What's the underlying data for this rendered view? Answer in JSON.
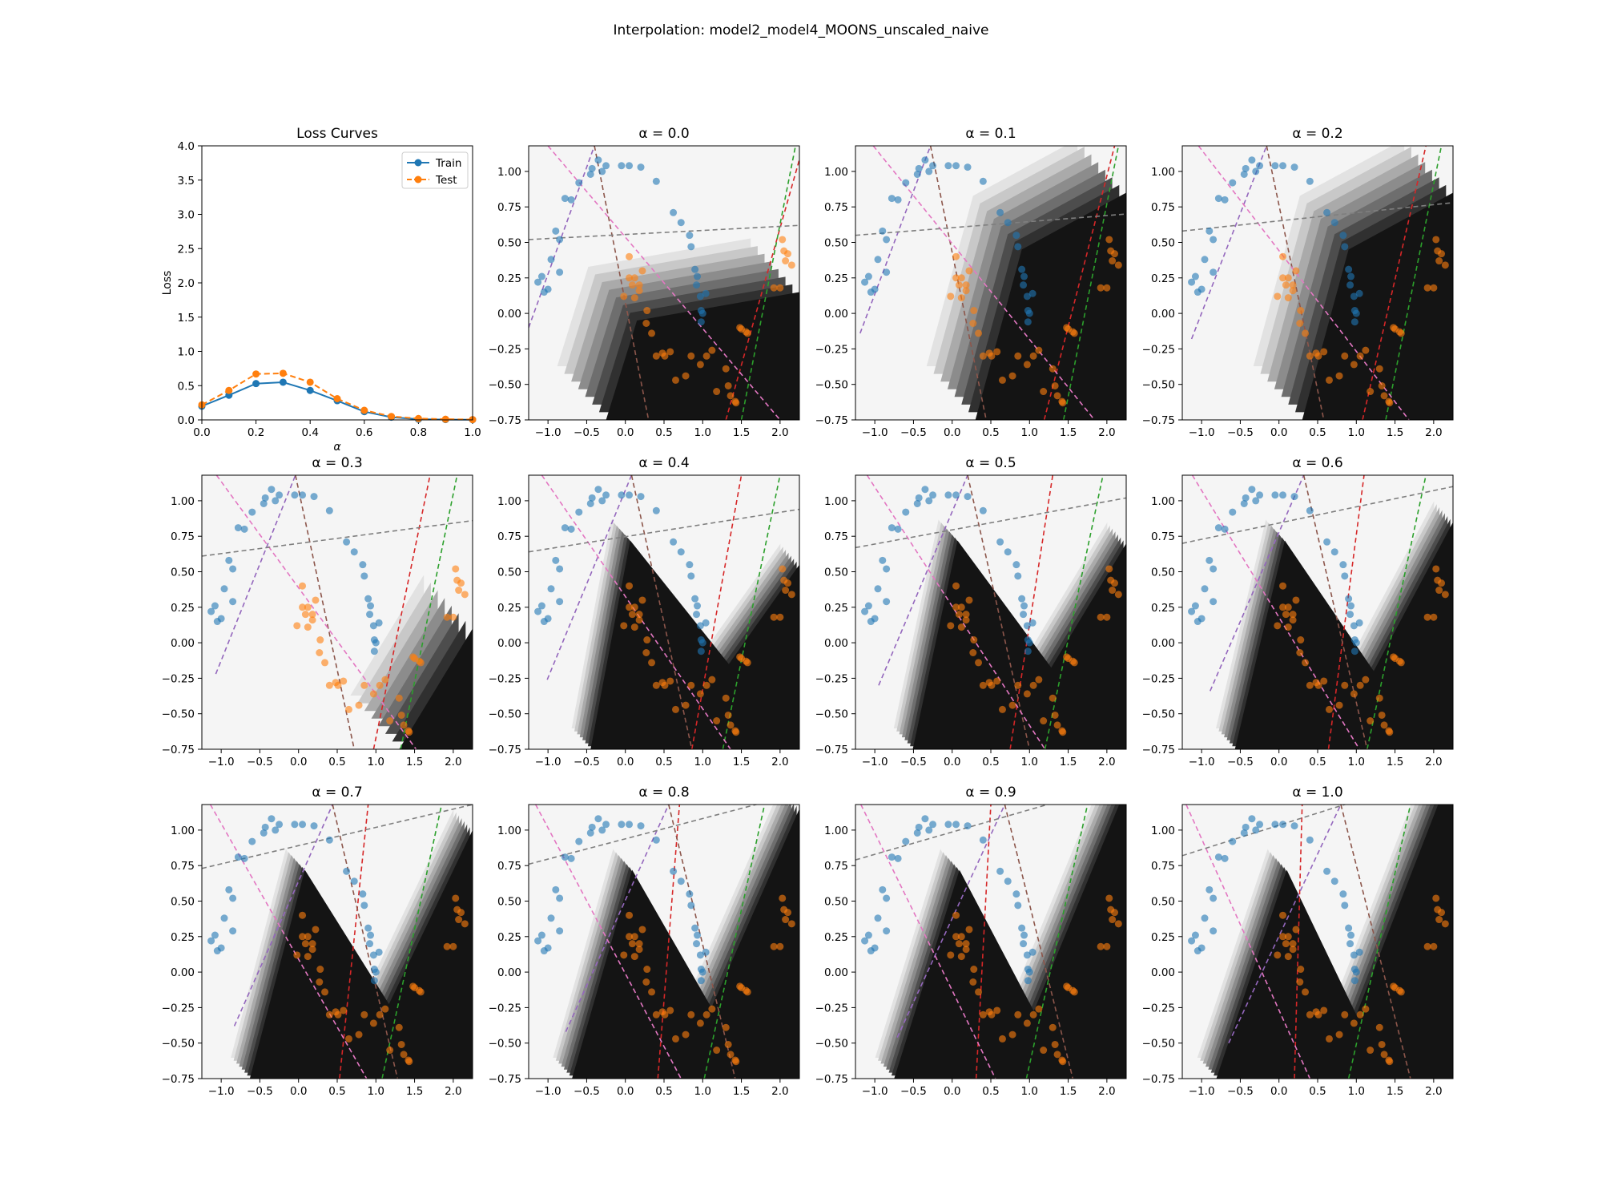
{
  "figure": {
    "suptitle": "Interpolation: model2_model4_MOONS_unscaled_naive"
  },
  "colors": {
    "train": "#1f77b4",
    "test": "#ff7f0e",
    "dark_region": "#141414",
    "light_region": "#f5f5f5",
    "boundary_lines": [
      "#d62728",
      "#2ca02c",
      "#9467bd",
      "#8c564b",
      "#e377c2",
      "#7f7f7f"
    ]
  },
  "chart_data": [
    {
      "type": "line",
      "title": "Loss Curves",
      "xlabel": "α",
      "ylabel": "Loss",
      "xlim": [
        0,
        1
      ],
      "ylim": [
        0,
        4
      ],
      "xticks": [
        "0.0",
        "0.2",
        "0.4",
        "0.6",
        "0.8",
        "1.0"
      ],
      "yticks": [
        "0.0",
        "0.5",
        "1.0",
        "1.5",
        "2.0",
        "2.5",
        "3.0",
        "3.5",
        "4.0"
      ],
      "legend": "top-right",
      "x": [
        0.0,
        0.1,
        0.2,
        0.3,
        0.4,
        0.5,
        0.6,
        0.7,
        0.8,
        0.9,
        1.0
      ],
      "series": [
        {
          "name": "Train",
          "style": "solid",
          "values": [
            0.2,
            0.36,
            0.53,
            0.55,
            0.43,
            0.28,
            0.12,
            0.04,
            0.01,
            0.005,
            0.003
          ]
        },
        {
          "name": "Test",
          "style": "dashed",
          "values": [
            0.22,
            0.43,
            0.67,
            0.68,
            0.55,
            0.31,
            0.14,
            0.05,
            0.02,
            0.01,
            0.005
          ]
        }
      ]
    },
    {
      "type": "scatter",
      "title_prefix": "α = ",
      "alphas": [
        "0.0",
        "0.1",
        "0.2",
        "0.3",
        "0.4",
        "0.5",
        "0.6",
        "0.7",
        "0.8",
        "0.9",
        "1.0"
      ],
      "xlim": [
        -1.25,
        2.25
      ],
      "ylim": [
        -0.75,
        1.18
      ],
      "xticks": [
        "−1.0",
        "−0.5",
        "0.0",
        "0.5",
        "1.0",
        "1.5",
        "2.0"
      ],
      "yticks": [
        "−0.75",
        "−0.50",
        "−0.25",
        "0.00",
        "0.25",
        "0.50",
        "0.75",
        "1.00"
      ],
      "class0_points": [
        [
          -1.13,
          0.22
        ],
        [
          -1.08,
          0.26
        ],
        [
          -1.05,
          0.15
        ],
        [
          -1.0,
          0.17
        ],
        [
          -0.96,
          0.38
        ],
        [
          -0.9,
          0.58
        ],
        [
          -0.85,
          0.52
        ],
        [
          -0.85,
          0.29
        ],
        [
          -0.78,
          0.81
        ],
        [
          -0.7,
          0.8
        ],
        [
          -0.6,
          0.92
        ],
        [
          -0.45,
          0.98
        ],
        [
          -0.43,
          1.02
        ],
        [
          -0.35,
          1.08
        ],
        [
          -0.3,
          1.0
        ],
        [
          -0.25,
          1.04
        ],
        [
          -0.05,
          1.04
        ],
        [
          0.05,
          1.04
        ],
        [
          0.2,
          1.03
        ],
        [
          0.4,
          0.93
        ],
        [
          0.62,
          0.71
        ],
        [
          0.72,
          0.64
        ],
        [
          0.83,
          0.55
        ],
        [
          0.85,
          0.47
        ],
        [
          0.9,
          0.31
        ],
        [
          0.92,
          0.2
        ],
        [
          0.93,
          0.26
        ],
        [
          0.98,
          0.02
        ],
        [
          1.0,
          0.0
        ],
        [
          0.98,
          -0.06
        ],
        [
          1.04,
          0.14
        ],
        [
          0.97,
          0.12
        ]
      ],
      "class1_points": [
        [
          -0.02,
          0.12
        ],
        [
          0.05,
          0.25
        ],
        [
          0.05,
          0.4
        ],
        [
          0.09,
          0.2
        ],
        [
          0.12,
          0.25
        ],
        [
          0.18,
          0.2
        ],
        [
          0.12,
          0.11
        ],
        [
          0.18,
          0.16
        ],
        [
          0.22,
          0.3
        ],
        [
          0.27,
          -0.07
        ],
        [
          0.28,
          0.02
        ],
        [
          0.34,
          -0.14
        ],
        [
          0.4,
          -0.3
        ],
        [
          0.48,
          -0.28
        ],
        [
          0.51,
          -0.3
        ],
        [
          0.58,
          -0.27
        ],
        [
          0.65,
          -0.47
        ],
        [
          0.78,
          -0.44
        ],
        [
          0.85,
          -0.3
        ],
        [
          0.97,
          -0.36
        ],
        [
          1.05,
          -0.3
        ],
        [
          1.12,
          -0.26
        ],
        [
          1.18,
          -0.55
        ],
        [
          1.3,
          -0.39
        ],
        [
          1.33,
          -0.51
        ],
        [
          1.36,
          -0.58
        ],
        [
          1.42,
          -0.62
        ],
        [
          1.43,
          -0.63
        ],
        [
          1.48,
          -0.1
        ],
        [
          1.5,
          -0.11
        ],
        [
          1.56,
          -0.13
        ],
        [
          1.58,
          -0.14
        ],
        [
          1.92,
          0.18
        ],
        [
          2.0,
          0.18
        ],
        [
          2.03,
          0.52
        ],
        [
          2.05,
          0.44
        ],
        [
          2.07,
          0.37
        ],
        [
          2.1,
          0.42
        ],
        [
          2.15,
          0.34
        ]
      ]
    }
  ]
}
